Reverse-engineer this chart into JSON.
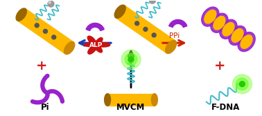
{
  "bg_color": "#ffffff",
  "labels": {
    "Pi": "Pi",
    "MVCM": "MVCM",
    "FDNA": "F-DNA",
    "ALP": "ALP",
    "PPi": "PPi"
  },
  "colors": {
    "gold": "#FFB800",
    "gold_shadow": "#CC8800",
    "gold_dark": "#996600",
    "arrow_left": "#1a3fb0",
    "arrow_right": "#cc2200",
    "arrow_up": "#111111",
    "ALP_blob": "#cc1111",
    "ALP_text": "#ffffff",
    "PPi_text": "#cc2200",
    "dna_cyan": "#44BBCC",
    "purple": "#9922CC",
    "green_bright": "#44ee00",
    "green_glow": "#88ff44",
    "grey_ball": "#888888",
    "plus_color": "#cc2222",
    "label_color": "#111111",
    "white": "#ffffff"
  },
  "font_sizes": {
    "labels": 8,
    "ALP": 6,
    "PPi": 7,
    "plus": 12
  }
}
